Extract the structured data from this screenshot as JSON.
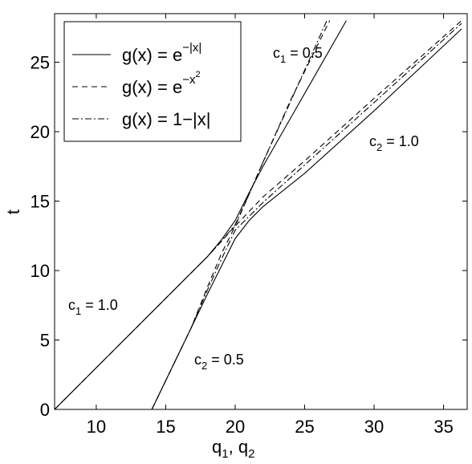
{
  "chart_data": {
    "type": "line",
    "y_label": "t",
    "x_label": [
      {
        "text": "q"
      },
      {
        "sub": "1"
      },
      {
        "text": ", q"
      },
      {
        "sub": "2"
      }
    ],
    "xlim": [
      7,
      36.7
    ],
    "ylim": [
      0,
      28.5
    ],
    "xticks": [
      10,
      15,
      20,
      25,
      30,
      35
    ],
    "yticks": [
      0,
      5,
      10,
      15,
      20,
      25
    ],
    "grid": false,
    "legend": "upper left",
    "series": [
      {
        "name": "g(x) = e",
        "name_sup": "−|x|",
        "color": "#000000",
        "dash": "none",
        "x": [
          7,
          16.5,
          18,
          19,
          20,
          21,
          22,
          24,
          26,
          28,
          null,
          14,
          16.8,
          18,
          19,
          20,
          21,
          22,
          25,
          30,
          36.3
        ],
        "values": [
          0,
          9.5,
          11,
          12.2,
          13.6,
          15.6,
          17.5,
          21,
          24.5,
          28,
          null,
          0,
          5.8,
          8.3,
          10.3,
          12.3,
          13.6,
          14.6,
          17,
          21.5,
          27.4
        ]
      },
      {
        "name": "g(x) = e",
        "name_sup": "−x",
        "name_sup2": "2",
        "color": "#000000",
        "dash": "7 5",
        "x": [
          7,
          16.5,
          18,
          19,
          20,
          21,
          22,
          24,
          26.8,
          null,
          14,
          16.8,
          18,
          19,
          20,
          22,
          25,
          30,
          36.3
        ],
        "values": [
          0,
          9.5,
          11,
          12.1,
          13.2,
          15.5,
          17.8,
          22.3,
          28,
          null,
          0,
          5.8,
          8.8,
          11.2,
          13.2,
          15.3,
          17.9,
          22.4,
          28
        ]
      },
      {
        "name": "g(x) = 1−|x|",
        "color": "#000000",
        "dash": "8 3 2 3",
        "x": [
          7,
          16.5,
          18,
          19,
          20,
          21,
          22,
          24,
          26.6,
          null,
          14,
          16.8,
          18,
          19,
          20,
          22,
          25,
          30,
          36.3
        ],
        "values": [
          0,
          9.5,
          11,
          12.1,
          13.3,
          15.5,
          17.8,
          22.2,
          28,
          null,
          0,
          5.8,
          8.6,
          10.8,
          12.9,
          14.9,
          17.6,
          22.1,
          27.8
        ]
      }
    ],
    "annotations": [
      {
        "text": "c",
        "sub": "1",
        "rest": " = 0.5"
      },
      {
        "text": "c",
        "sub": "2",
        "rest": " = 1.0"
      },
      {
        "text": "c",
        "sub": "1",
        "rest": " = 1.0"
      },
      {
        "text": "c",
        "sub": "2",
        "rest": " = 0.5"
      }
    ]
  }
}
